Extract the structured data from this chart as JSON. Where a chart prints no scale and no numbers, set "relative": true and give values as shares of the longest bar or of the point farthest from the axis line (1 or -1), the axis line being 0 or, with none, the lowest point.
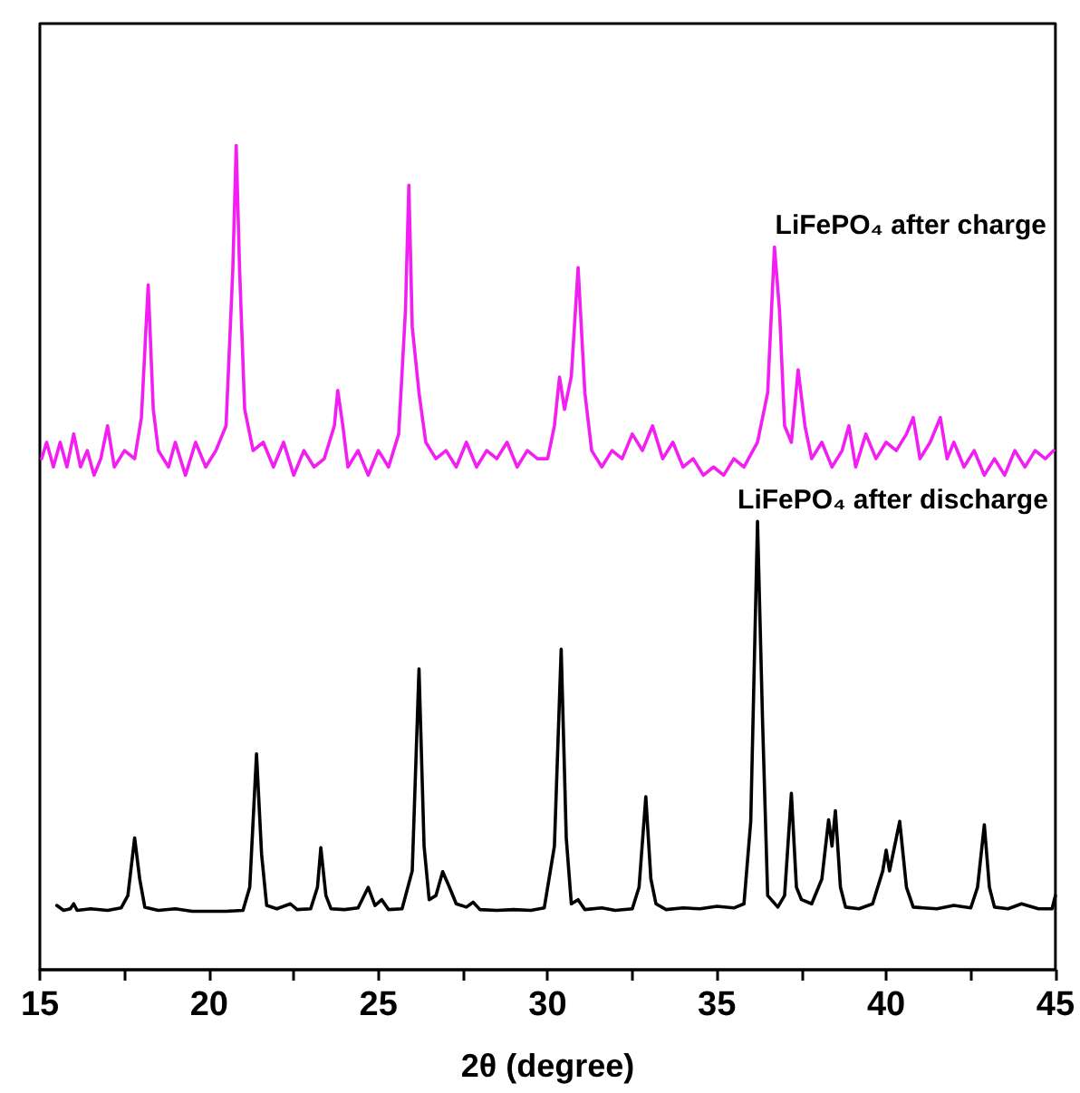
{
  "chart_data": {
    "type": "line",
    "relative": true,
    "xlabel": "2θ (degree)",
    "xlim": [
      15,
      45
    ],
    "xticks": [
      15,
      {
        "value": 17.5,
        "label": null
      },
      20,
      {
        "value": 22.5,
        "label": null
      },
      25,
      {
        "value": 27.5,
        "label": null
      },
      30,
      {
        "value": 32.5,
        "label": null
      },
      35,
      {
        "value": 37.5,
        "label": null
      },
      40,
      {
        "value": 42.5,
        "label": null
      },
      45
    ],
    "legend": false,
    "grid": false,
    "marker": "none",
    "line_style": "solid",
    "series": [
      {
        "name": "LiFePO₄ after charge",
        "color": "#f21ef2",
        "x": [
          15.05,
          15.2,
          15.4,
          15.6,
          15.8,
          16.0,
          16.2,
          16.4,
          16.6,
          16.8,
          17.0,
          17.2,
          17.5,
          17.8,
          18.0,
          18.2,
          18.35,
          18.5,
          18.8,
          19.0,
          19.3,
          19.6,
          19.9,
          20.2,
          20.5,
          20.7,
          20.8,
          20.9,
          21.05,
          21.3,
          21.6,
          21.9,
          22.2,
          22.5,
          22.8,
          23.1,
          23.4,
          23.7,
          23.8,
          23.95,
          24.1,
          24.4,
          24.7,
          25.0,
          25.3,
          25.6,
          25.8,
          25.9,
          26.0,
          26.2,
          26.4,
          26.7,
          27.0,
          27.3,
          27.6,
          27.9,
          28.2,
          28.5,
          28.8,
          29.1,
          29.4,
          29.7,
          30.0,
          30.2,
          30.35,
          30.5,
          30.7,
          30.9,
          31.1,
          31.3,
          31.6,
          31.9,
          32.2,
          32.5,
          32.8,
          33.1,
          33.4,
          33.7,
          34.0,
          34.3,
          34.6,
          34.9,
          35.2,
          35.5,
          35.8,
          36.2,
          36.5,
          36.7,
          36.85,
          37.0,
          37.2,
          37.4,
          37.6,
          37.8,
          38.1,
          38.4,
          38.7,
          38.9,
          39.1,
          39.4,
          39.7,
          40.0,
          40.3,
          40.6,
          40.8,
          41.0,
          41.3,
          41.6,
          41.8,
          42.0,
          42.3,
          42.6,
          42.9,
          43.2,
          43.5,
          43.8,
          44.1,
          44.4,
          44.7,
          44.95
        ],
        "values": [
          0.62,
          0.64,
          0.61,
          0.64,
          0.61,
          0.65,
          0.61,
          0.63,
          0.6,
          0.62,
          0.66,
          0.61,
          0.63,
          0.62,
          0.67,
          0.831,
          0.68,
          0.63,
          0.61,
          0.64,
          0.6,
          0.64,
          0.61,
          0.63,
          0.66,
          0.85,
          1.0,
          0.85,
          0.68,
          0.63,
          0.64,
          0.61,
          0.64,
          0.6,
          0.63,
          0.61,
          0.62,
          0.66,
          0.703,
          0.66,
          0.61,
          0.63,
          0.6,
          0.63,
          0.61,
          0.65,
          0.8,
          0.952,
          0.78,
          0.7,
          0.64,
          0.62,
          0.63,
          0.61,
          0.64,
          0.61,
          0.63,
          0.62,
          0.64,
          0.61,
          0.63,
          0.62,
          0.62,
          0.66,
          0.719,
          0.68,
          0.72,
          0.852,
          0.7,
          0.63,
          0.61,
          0.63,
          0.62,
          0.65,
          0.63,
          0.66,
          0.62,
          0.64,
          0.61,
          0.62,
          0.6,
          0.61,
          0.6,
          0.62,
          0.61,
          0.64,
          0.7,
          0.877,
          0.8,
          0.66,
          0.64,
          0.728,
          0.66,
          0.62,
          0.64,
          0.61,
          0.63,
          0.66,
          0.61,
          0.65,
          0.62,
          0.64,
          0.63,
          0.65,
          0.67,
          0.62,
          0.64,
          0.67,
          0.62,
          0.64,
          0.61,
          0.63,
          0.6,
          0.62,
          0.6,
          0.63,
          0.61,
          0.63,
          0.62,
          0.63
        ]
      },
      {
        "name": "LiFePO₄ after discharge",
        "color": "#000000",
        "x": [
          15.5,
          15.7,
          15.9,
          16.0,
          16.1,
          16.5,
          17.0,
          17.4,
          17.6,
          17.8,
          17.95,
          18.1,
          18.5,
          19.0,
          19.5,
          20.0,
          20.5,
          21.0,
          21.2,
          21.4,
          21.55,
          21.7,
          22.0,
          22.4,
          22.6,
          23.0,
          23.2,
          23.3,
          23.45,
          23.6,
          24.0,
          24.4,
          24.7,
          24.9,
          25.1,
          25.3,
          25.7,
          26.0,
          26.2,
          26.35,
          26.5,
          26.7,
          26.9,
          27.1,
          27.3,
          27.6,
          27.8,
          28.0,
          28.5,
          29.0,
          29.5,
          29.9,
          30.2,
          30.4,
          30.55,
          30.7,
          30.9,
          31.1,
          31.6,
          32.0,
          32.5,
          32.7,
          32.9,
          33.05,
          33.2,
          33.5,
          34.0,
          34.5,
          35.0,
          35.5,
          35.8,
          36.0,
          36.2,
          36.35,
          36.5,
          36.8,
          37.0,
          37.2,
          37.35,
          37.5,
          37.8,
          38.1,
          38.3,
          38.4,
          38.5,
          38.65,
          38.8,
          39.2,
          39.6,
          39.9,
          40.0,
          40.1,
          40.4,
          40.6,
          40.8,
          41.5,
          42.0,
          42.5,
          42.7,
          42.9,
          43.05,
          43.2,
          43.6,
          44.0,
          44.5,
          44.9,
          45.0
        ],
        "values": [
          0.078,
          0.072,
          0.074,
          0.08,
          0.072,
          0.074,
          0.072,
          0.075,
          0.09,
          0.16,
          0.11,
          0.076,
          0.072,
          0.074,
          0.071,
          0.071,
          0.071,
          0.072,
          0.1,
          0.262,
          0.14,
          0.078,
          0.074,
          0.08,
          0.073,
          0.074,
          0.1,
          0.148,
          0.09,
          0.074,
          0.073,
          0.075,
          0.1,
          0.078,
          0.085,
          0.073,
          0.074,
          0.12,
          0.365,
          0.15,
          0.085,
          0.09,
          0.119,
          0.1,
          0.08,
          0.076,
          0.082,
          0.073,
          0.072,
          0.073,
          0.072,
          0.075,
          0.15,
          0.389,
          0.16,
          0.08,
          0.085,
          0.073,
          0.075,
          0.072,
          0.074,
          0.1,
          0.21,
          0.11,
          0.08,
          0.073,
          0.075,
          0.074,
          0.077,
          0.075,
          0.08,
          0.18,
          0.544,
          0.3,
          0.09,
          0.076,
          0.09,
          0.214,
          0.1,
          0.085,
          0.08,
          0.11,
          0.182,
          0.15,
          0.193,
          0.1,
          0.076,
          0.074,
          0.08,
          0.12,
          0.145,
          0.12,
          0.18,
          0.1,
          0.076,
          0.074,
          0.078,
          0.075,
          0.1,
          0.176,
          0.1,
          0.076,
          0.074,
          0.08,
          0.074,
          0.074,
          0.09
        ]
      }
    ]
  }
}
